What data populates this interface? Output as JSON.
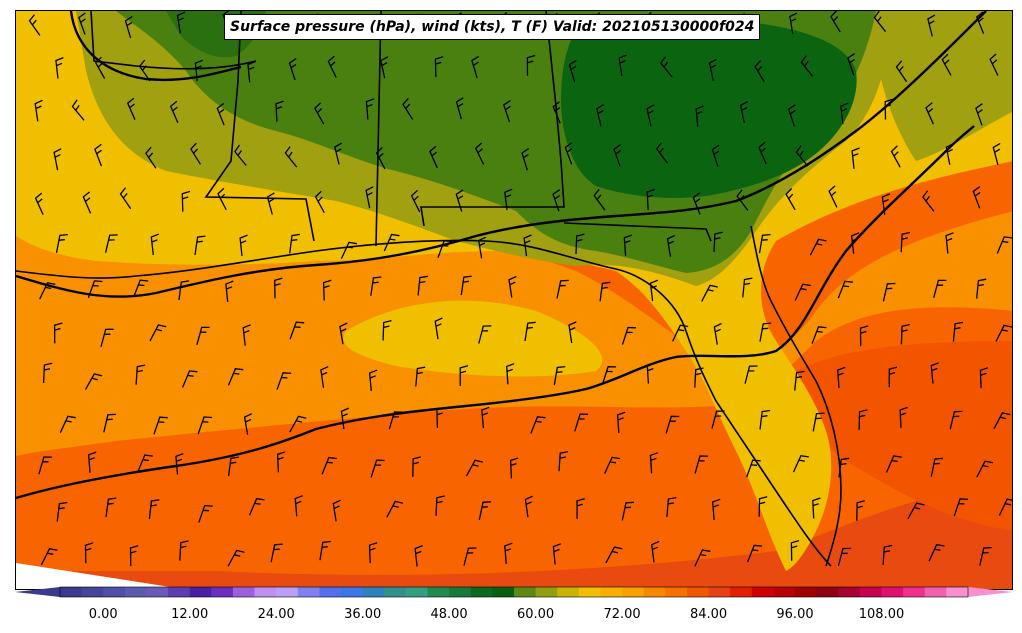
{
  "title": "Surface pressure (hPa), wind (kts), T (F) Valid: 202105130000f024",
  "colorbar": {
    "tick_labels": [
      "0.00",
      "12.00",
      "24.00",
      "36.00",
      "48.00",
      "60.00",
      "72.00",
      "84.00",
      "96.00",
      "108.00"
    ],
    "range": [
      -6,
      120
    ],
    "colors": [
      "#3a3a8f",
      "#45459a",
      "#5050a8",
      "#5b5bb0",
      "#6a5aba",
      "#5b3db0",
      "#4a1fa8",
      "#6a2fc0",
      "#9a60e0",
      "#c090f0",
      "#b8a0f8",
      "#8080f0",
      "#5070f0",
      "#3a78e8",
      "#3080c0",
      "#309090",
      "#30a080",
      "#208a50",
      "#157a3a",
      "#0a6a20",
      "#056010",
      "#5a8a10",
      "#90a010",
      "#c8b400",
      "#f0c000",
      "#f8b000",
      "#f8a000",
      "#f88800",
      "#f87000",
      "#f05800",
      "#e84010",
      "#e02000",
      "#d00000",
      "#b80000",
      "#a00000",
      "#900010",
      "#a80030",
      "#c80050",
      "#e01070",
      "#f03090",
      "#f060b0",
      "#f890d0"
    ]
  },
  "map_fill_colors": {
    "ocean_warm": "#f86400",
    "ocean_hot": "#e84a10",
    "gulf_orange": "#f89000",
    "land_yellow": "#f0c000",
    "land_olive": "#a0a010",
    "land_green": "#4a8010",
    "land_dark_green": "#0a6410"
  }
}
